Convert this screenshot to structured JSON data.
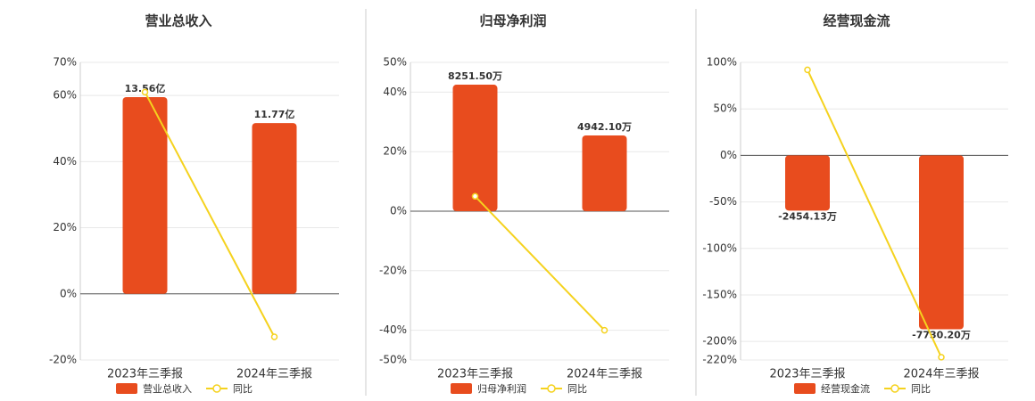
{
  "chart_data": [
    {
      "type": "bar",
      "title": "营业总收入",
      "categories": [
        "2023年三季报",
        "2024年三季报"
      ],
      "series": [
        {
          "name": "营业总收入",
          "type": "bar",
          "color": "#e84c1e",
          "values": [
            13.56,
            11.77
          ],
          "value_labels": [
            "13.56亿",
            "11.77亿"
          ]
        },
        {
          "name": "同比",
          "type": "line",
          "color": "#f5d21e",
          "values": [
            61,
            -13
          ]
        }
      ],
      "ylim": [
        -20,
        70
      ],
      "yticks": [
        {
          "value": -20,
          "label": "-20%"
        },
        {
          "value": 0,
          "label": "0%"
        },
        {
          "value": 20,
          "label": "20%"
        },
        {
          "value": 40,
          "label": "40%"
        },
        {
          "value": 60,
          "label": "60%"
        },
        {
          "value": 70,
          "label": "70%"
        }
      ],
      "grid": true
    },
    {
      "type": "bar",
      "title": "归母净利润",
      "categories": [
        "2023年三季报",
        "2024年三季报"
      ],
      "series": [
        {
          "name": "归母净利润",
          "type": "bar",
          "color": "#e84c1e",
          "values": [
            8251.5,
            4942.1
          ],
          "value_labels": [
            "8251.50万",
            "4942.10万"
          ]
        },
        {
          "name": "同比",
          "type": "line",
          "color": "#f5d21e",
          "values": [
            5,
            -40
          ]
        }
      ],
      "ylim": [
        -50,
        50
      ],
      "yticks": [
        {
          "value": -50,
          "label": "-50%"
        },
        {
          "value": -40,
          "label": "-40%"
        },
        {
          "value": -20,
          "label": "-20%"
        },
        {
          "value": 0,
          "label": "0%"
        },
        {
          "value": 20,
          "label": "20%"
        },
        {
          "value": 40,
          "label": "40%"
        },
        {
          "value": 50,
          "label": "50%"
        }
      ],
      "grid": true
    },
    {
      "type": "bar",
      "title": "经营现金流",
      "categories": [
        "2023年三季报",
        "2024年三季报"
      ],
      "series": [
        {
          "name": "经营现金流",
          "type": "bar",
          "color": "#e84c1e",
          "values": [
            -2454.13,
            -7730.2
          ],
          "value_labels": [
            "-2454.13万",
            "-7730.20万"
          ]
        },
        {
          "name": "同比",
          "type": "line",
          "color": "#f5d21e",
          "values": [
            92,
            -217
          ]
        }
      ],
      "ylim": [
        -220,
        100
      ],
      "yticks": [
        {
          "value": -220,
          "label": "-220%"
        },
        {
          "value": -200,
          "label": "-200%"
        },
        {
          "value": -150,
          "label": "-150%"
        },
        {
          "value": -100,
          "label": "-100%"
        },
        {
          "value": -50,
          "label": "-50%"
        },
        {
          "value": 0,
          "label": "0%"
        },
        {
          "value": 50,
          "label": "50%"
        },
        {
          "value": 100,
          "label": "100%"
        }
      ],
      "grid": true
    }
  ]
}
